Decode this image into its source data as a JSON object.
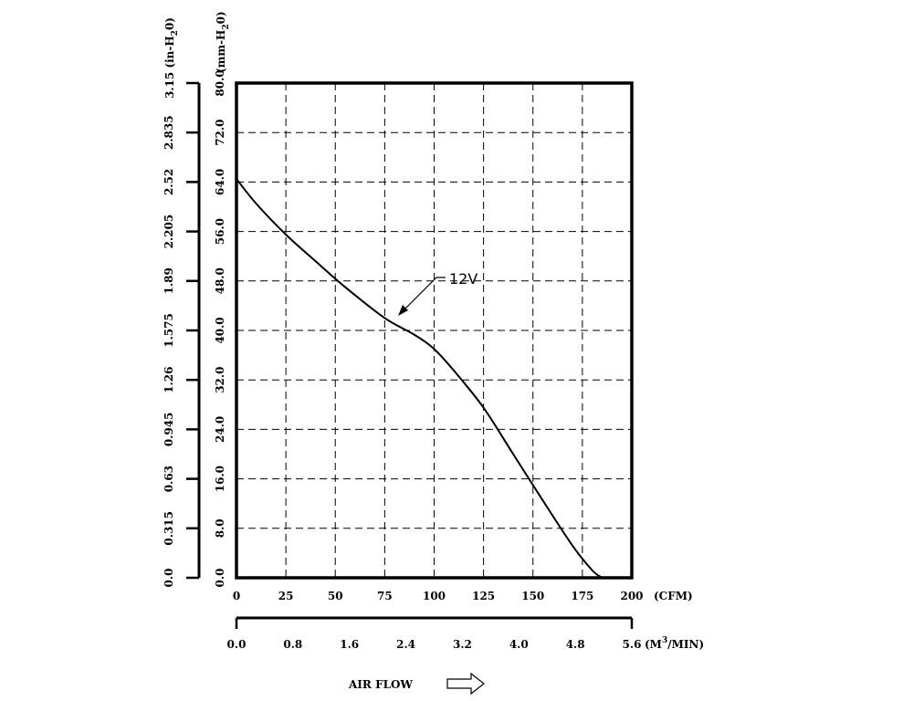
{
  "chart_data": {
    "type": "line",
    "title": "",
    "x_axis_primary": {
      "unit_label": "(CFM)",
      "range": [
        0,
        200
      ],
      "tick_labels": [
        "0",
        "25",
        "50",
        "75",
        "100",
        "125",
        "150",
        "175",
        "200"
      ]
    },
    "x_axis_secondary": {
      "unit_label_main": "(M",
      "unit_label_sup": "3",
      "unit_label_rest": "/MIN)",
      "range": [
        0,
        5.6
      ],
      "tick_labels": [
        "0.0",
        "0.8",
        "1.6",
        "2.4",
        "3.2",
        "4.0",
        "4.8",
        "5.6"
      ]
    },
    "y_axis_primary": {
      "unit_label_main": "(mm-H",
      "unit_label_sub": "2",
      "unit_label_rest": "0)",
      "range": [
        0,
        80
      ],
      "tick_labels": [
        "0.0",
        "8.0",
        "16.0",
        "24.0",
        "32.0",
        "40.0",
        "48.0",
        "56.0",
        "64.0",
        "72.0",
        "80.0"
      ]
    },
    "y_axis_secondary": {
      "unit_label_main": "3.15 (in-H",
      "unit_label_sub": "2",
      "unit_label_rest": "0)",
      "range": [
        0,
        3.15
      ],
      "tick_labels": [
        "0.0",
        "0.315",
        "0.63",
        "0.945",
        "1.26",
        "1.575",
        "1.89",
        "2.205",
        "2.52",
        "2.835"
      ]
    },
    "grid": true,
    "series": [
      {
        "name": "12V",
        "x": [
          0,
          10,
          25,
          40,
          55,
          75,
          90,
          100,
          110,
          125,
          140,
          155,
          170,
          180,
          185
        ],
        "y": [
          64.5,
          60.5,
          55.5,
          51.2,
          47.0,
          42.0,
          39.3,
          37.0,
          33.5,
          27.5,
          20.0,
          12.5,
          5.2,
          1.2,
          0
        ]
      }
    ],
    "footer_label": "AIR FLOW"
  }
}
